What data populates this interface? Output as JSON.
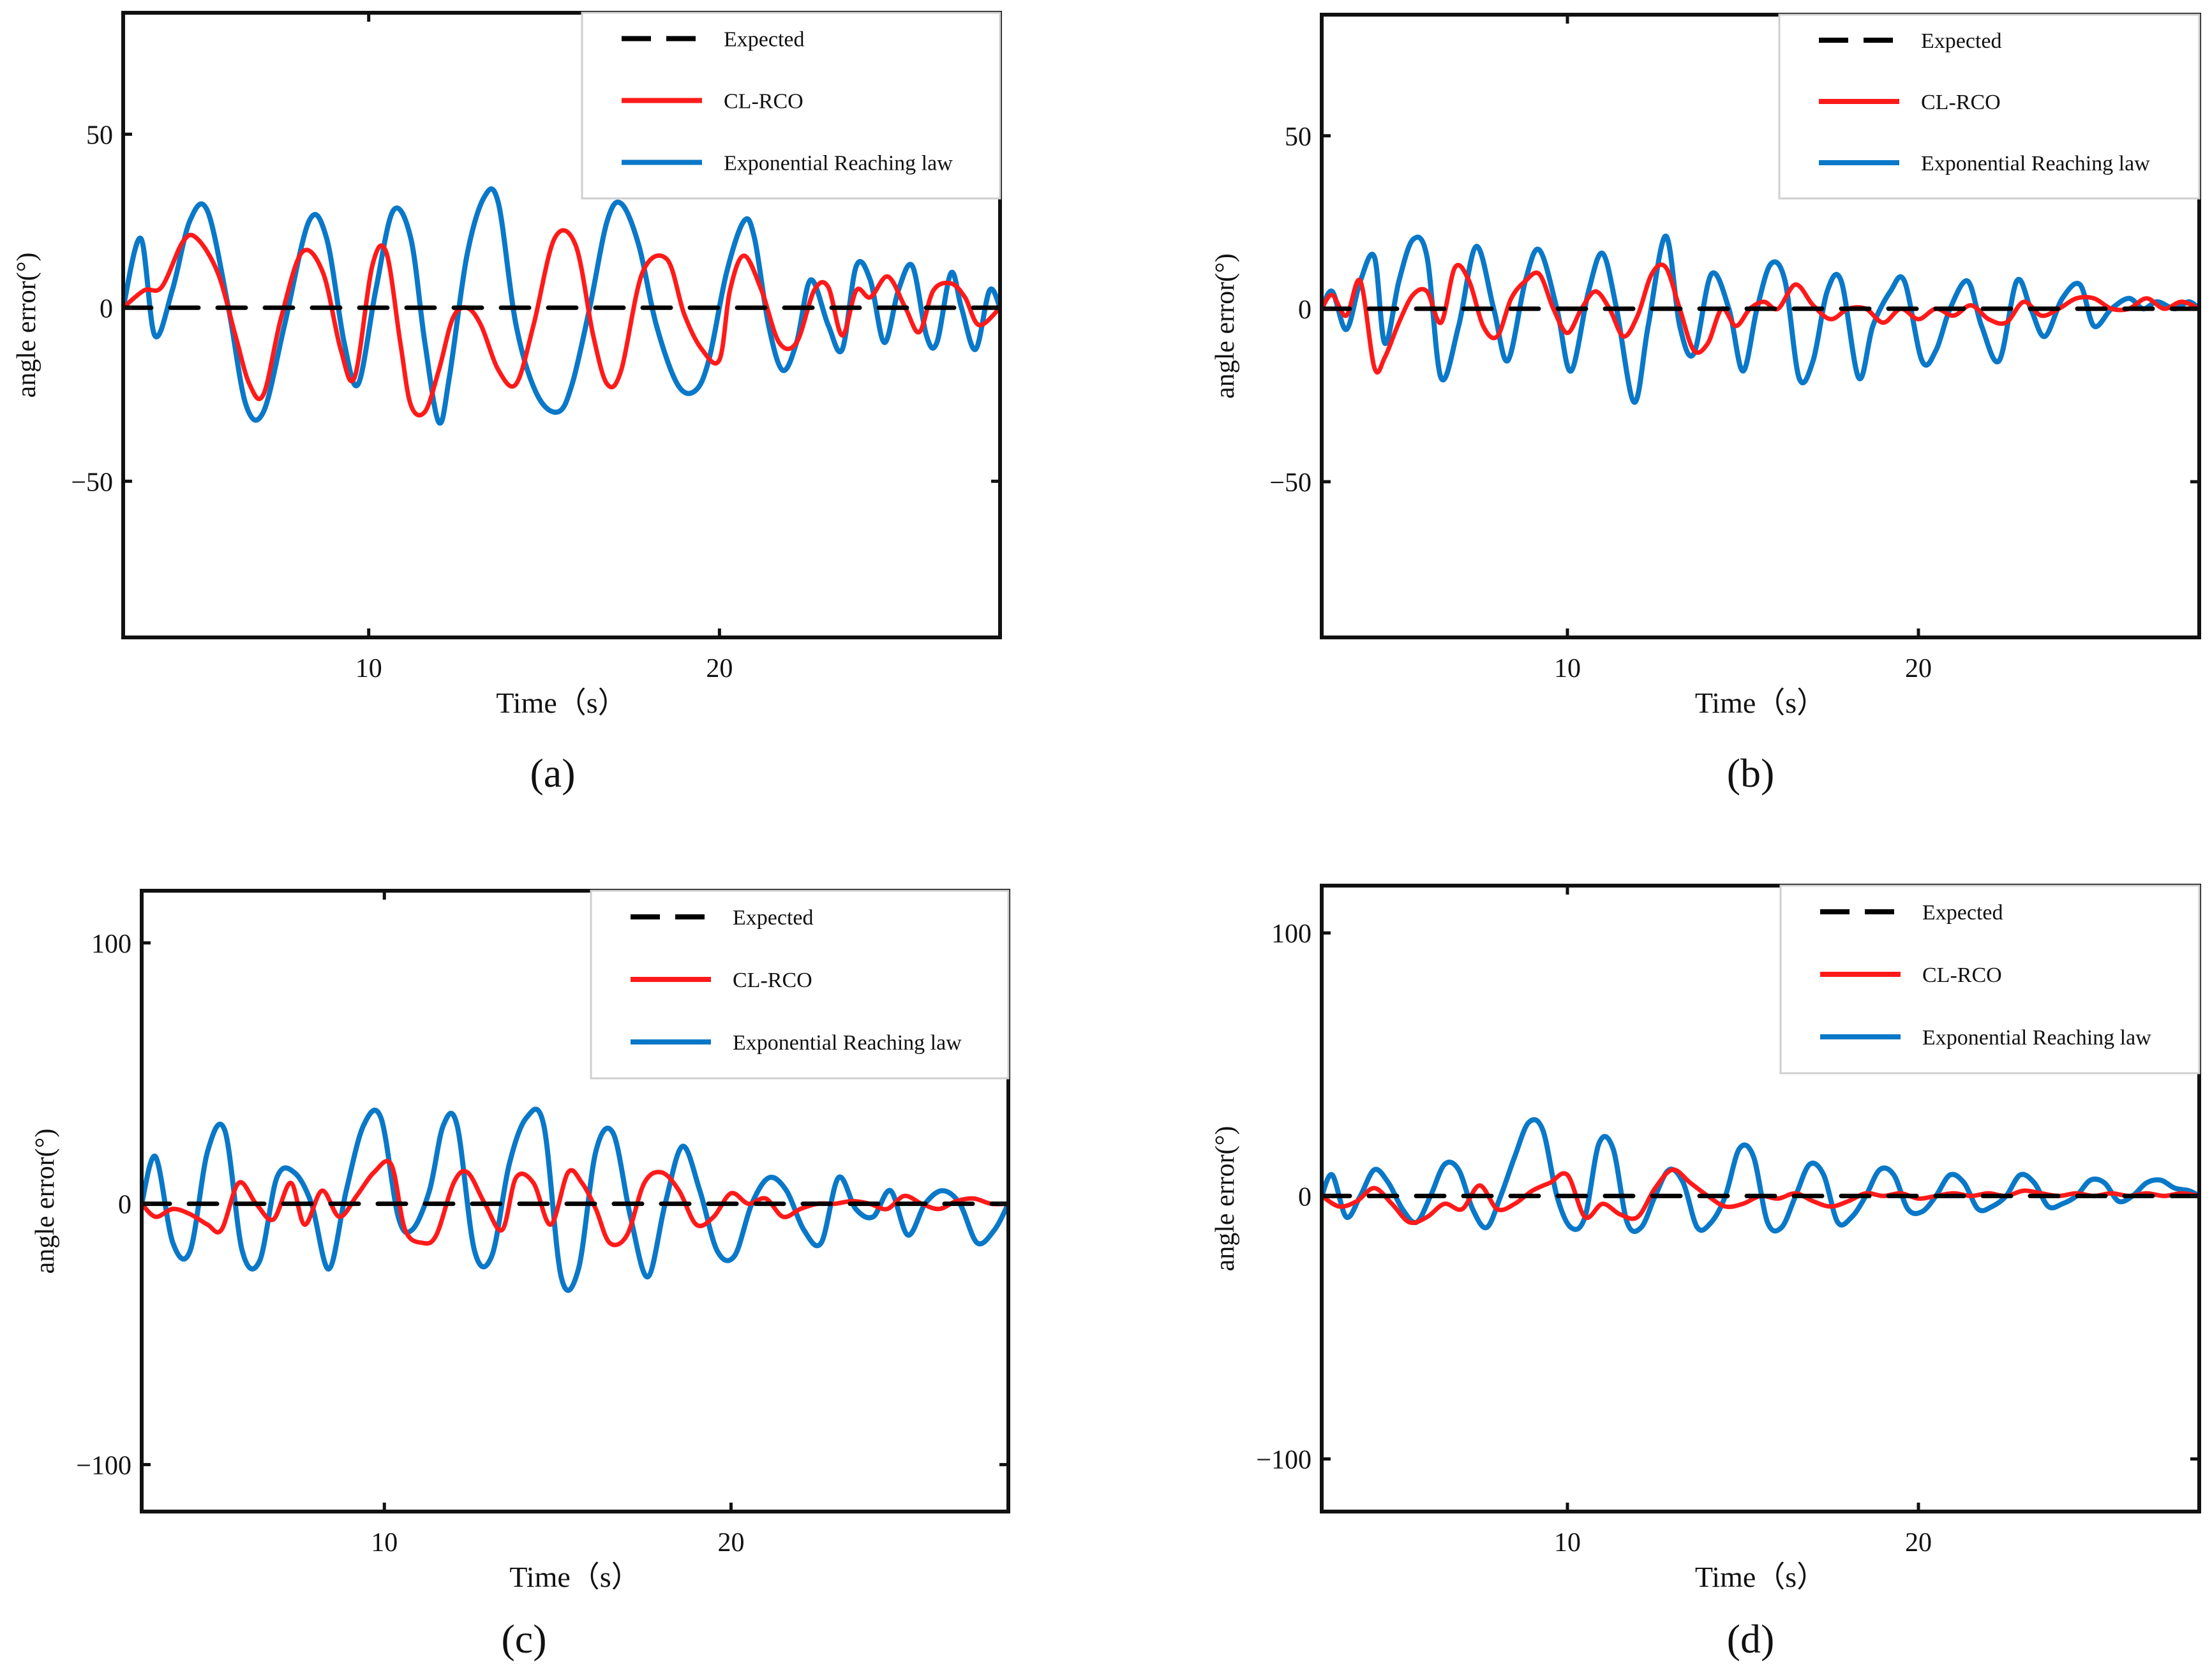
{
  "figure": {
    "panel_labels": [
      "(a)",
      "(b)",
      "(c)",
      "(d)"
    ],
    "colors": {
      "expected": "#000000",
      "clrco": "#ff1a1a",
      "exponential": "#0a78c8"
    }
  },
  "chart_data": [
    {
      "type": "line",
      "panel": "(a)",
      "xlabel": "Time（s）",
      "ylabel": "angle error(°)",
      "xlim": [
        3,
        28
      ],
      "ylim": [
        -95,
        85
      ],
      "xticks": [
        10,
        20
      ],
      "yticks": [
        50,
        0,
        -50
      ],
      "ytick_labels": [
        "50",
        "0",
        "−50"
      ],
      "legend": [
        "Expected",
        "CL-RCO",
        "Exponential Reaching law"
      ],
      "series": [
        {
          "name": "Expected",
          "style": "dashed",
          "color": "#000000",
          "x": [
            3,
            28
          ],
          "y": [
            0,
            0
          ]
        },
        {
          "name": "CL-RCO",
          "style": "solid",
          "color": "#ff1a1a",
          "x": [
            3.0,
            3.6,
            4.1,
            4.7,
            5.1,
            5.7,
            6.2,
            6.6,
            7.0,
            7.5,
            8.1,
            8.7,
            9.2,
            9.6,
            10.1,
            10.5,
            10.9,
            11.2,
            11.6,
            12.0,
            12.4,
            12.8,
            13.2,
            13.7,
            14.2,
            14.7,
            15.3,
            15.9,
            16.4,
            16.8,
            17.2,
            17.8,
            18.5,
            19.0,
            19.5,
            20.0,
            20.3,
            20.7,
            21.2,
            21.7,
            22.2,
            22.7,
            23.1,
            23.5,
            23.9,
            24.3,
            24.8,
            25.3,
            25.7,
            26.1,
            26.6,
            27.0,
            27.4,
            28.0
          ],
          "y": [
            0,
            5,
            6,
            19,
            20,
            10,
            -8,
            -22,
            -25,
            -3,
            16,
            10,
            -12,
            -20,
            12,
            16,
            -10,
            -28,
            -30,
            -18,
            -3,
            0,
            -5,
            -18,
            -22,
            -5,
            20,
            18,
            -8,
            -22,
            -18,
            10,
            14,
            -2,
            -12,
            -15,
            5,
            15,
            5,
            -10,
            -10,
            5,
            6,
            -8,
            5,
            3,
            9,
            0,
            -7,
            5,
            7,
            3,
            -5,
            0
          ]
        },
        {
          "name": "Exponential Reaching law",
          "style": "solid",
          "color": "#0a78c8",
          "x": [
            3.0,
            3.5,
            3.9,
            4.4,
            4.9,
            5.4,
            6.0,
            6.5,
            7.0,
            7.6,
            8.3,
            8.8,
            9.3,
            9.7,
            10.2,
            10.7,
            11.2,
            11.6,
            12.0,
            12.3,
            12.8,
            13.3,
            13.7,
            14.2,
            14.8,
            15.4,
            15.8,
            16.3,
            16.8,
            17.2,
            17.7,
            18.2,
            18.8,
            19.3,
            19.7,
            20.2,
            20.7,
            21.0,
            21.4,
            21.8,
            22.2,
            22.6,
            23.1,
            23.5,
            23.9,
            24.3,
            24.7,
            25.1,
            25.5,
            25.9,
            26.2,
            26.6,
            26.9,
            27.3,
            27.7,
            28.0
          ],
          "y": [
            0,
            20,
            -8,
            5,
            25,
            28,
            0,
            -28,
            -30,
            -5,
            25,
            20,
            -10,
            -22,
            5,
            28,
            20,
            -10,
            -33,
            -20,
            15,
            32,
            30,
            -5,
            -25,
            -30,
            -22,
            0,
            25,
            30,
            18,
            -5,
            -22,
            -24,
            -15,
            10,
            25,
            20,
            -5,
            -18,
            -10,
            8,
            -5,
            -12,
            12,
            8,
            -10,
            5,
            12,
            -8,
            -10,
            10,
            0,
            -12,
            5,
            0
          ]
        }
      ]
    },
    {
      "type": "line",
      "panel": "(b)",
      "xlabel": "Time（s）",
      "ylabel": "angle error(°)",
      "xlim": [
        3,
        28
      ],
      "ylim": [
        -95,
        85
      ],
      "xticks": [
        10,
        20
      ],
      "yticks": [
        50,
        0,
        -50
      ],
      "ytick_labels": [
        "50",
        "0",
        "−50"
      ],
      "legend": [
        "Expected",
        "CL-RCO",
        "Exponential Reaching law"
      ],
      "series": [
        {
          "name": "Expected",
          "style": "dashed",
          "color": "#000000",
          "x": [
            3,
            28
          ],
          "y": [
            0,
            0
          ]
        },
        {
          "name": "CL-RCO",
          "style": "solid",
          "color": "#ff1a1a",
          "x": [
            3.0,
            3.3,
            3.7,
            4.1,
            4.5,
            4.8,
            5.2,
            5.6,
            6.0,
            6.4,
            6.8,
            7.2,
            7.6,
            8.0,
            8.4,
            8.8,
            9.2,
            9.6,
            10.0,
            10.4,
            10.8,
            11.2,
            11.6,
            12.0,
            12.4,
            12.8,
            13.2,
            13.6,
            14.0,
            14.4,
            14.8,
            15.2,
            15.6,
            16.0,
            16.5,
            17.0,
            17.5,
            18.0,
            18.5,
            19.0,
            19.5,
            20.0,
            20.5,
            21.0,
            21.5,
            22.0,
            22.5,
            23.0,
            23.5,
            24.0,
            24.5,
            25.0,
            25.5,
            26.0,
            26.5,
            27.0,
            27.5,
            28.0
          ],
          "y": [
            0,
            4,
            -2,
            8,
            -17,
            -14,
            -4,
            4,
            5,
            -4,
            12,
            8,
            -5,
            -8,
            3,
            8,
            10,
            0,
            -7,
            0,
            5,
            0,
            -8,
            -2,
            10,
            12,
            0,
            -12,
            -10,
            0,
            -5,
            0,
            2,
            0,
            7,
            1,
            -3,
            0,
            0,
            -4,
            0,
            -3,
            0,
            -2,
            1,
            -3,
            -4,
            2,
            -2,
            0,
            3,
            3,
            0,
            0,
            3,
            0,
            2,
            0
          ]
        },
        {
          "name": "Exponential Reaching law",
          "style": "solid",
          "color": "#0a78c8",
          "x": [
            3.0,
            3.3,
            3.7,
            4.1,
            4.5,
            4.8,
            5.2,
            5.6,
            6.0,
            6.4,
            6.9,
            7.4,
            7.9,
            8.3,
            8.8,
            9.2,
            9.7,
            10.1,
            10.6,
            11.0,
            11.4,
            11.9,
            12.3,
            12.8,
            13.2,
            13.6,
            14.1,
            14.6,
            15.0,
            15.4,
            15.8,
            16.2,
            16.6,
            17.0,
            17.4,
            17.8,
            18.3,
            18.7,
            19.2,
            19.6,
            20.1,
            20.5,
            20.9,
            21.4,
            21.8,
            22.3,
            22.8,
            23.2,
            23.6,
            24.1,
            24.6,
            25.0,
            25.5,
            26.0,
            26.4,
            26.8,
            27.3,
            27.7,
            28.0
          ],
          "y": [
            0,
            5,
            -6,
            8,
            15,
            -10,
            8,
            20,
            15,
            -20,
            -5,
            18,
            0,
            -15,
            8,
            17,
            0,
            -18,
            5,
            16,
            0,
            -27,
            -5,
            21,
            -5,
            -13,
            10,
            0,
            -18,
            0,
            13,
            8,
            -20,
            -15,
            5,
            8,
            -20,
            -5,
            5,
            8,
            -15,
            -12,
            0,
            8,
            -5,
            -15,
            8,
            0,
            -8,
            3,
            7,
            -5,
            0,
            3,
            0,
            2,
            0,
            2,
            0
          ]
        }
      ]
    },
    {
      "type": "line",
      "panel": "(c)",
      "xlabel": "Time（s）",
      "ylabel": "angle error(°)",
      "xlim": [
        3,
        28
      ],
      "ylim": [
        -118,
        120
      ],
      "xticks": [
        10,
        20
      ],
      "yticks": [
        100,
        0,
        -100
      ],
      "ytick_labels": [
        "100",
        "0",
        "−100"
      ],
      "legend": [
        "Expected",
        "CL-RCO",
        "Exponential Reaching law"
      ],
      "series": [
        {
          "name": "Expected",
          "style": "dashed",
          "color": "#000000",
          "x": [
            3,
            28
          ],
          "y": [
            0,
            0
          ]
        },
        {
          "name": "CL-RCO",
          "style": "solid",
          "color": "#ff1a1a",
          "x": [
            3.0,
            3.4,
            3.9,
            4.4,
            4.9,
            5.3,
            5.8,
            6.3,
            6.8,
            7.3,
            7.7,
            8.2,
            8.7,
            9.2,
            9.7,
            10.2,
            10.6,
            11.1,
            11.5,
            12.0,
            12.4,
            12.9,
            13.4,
            13.8,
            14.3,
            14.8,
            15.3,
            15.7,
            16.1,
            16.5,
            17.0,
            17.5,
            18.0,
            18.5,
            19.0,
            19.5,
            20.0,
            20.5,
            21.0,
            21.5,
            22.0,
            22.5,
            23.0,
            23.5,
            24.0,
            24.5,
            25.0,
            25.5,
            26.0,
            26.5,
            27.0,
            27.5,
            28.0
          ],
          "y": [
            0,
            -5,
            -2,
            -4,
            -8,
            -10,
            8,
            0,
            -6,
            8,
            -8,
            5,
            -5,
            3,
            12,
            15,
            -10,
            -15,
            -12,
            8,
            12,
            0,
            -10,
            10,
            8,
            -8,
            12,
            8,
            -2,
            -15,
            -12,
            8,
            12,
            5,
            -8,
            -5,
            4,
            0,
            2,
            -5,
            -2,
            0,
            0,
            1,
            0,
            -2,
            3,
            0,
            -2,
            1,
            2,
            0,
            0
          ]
        },
        {
          "name": "Exponential Reaching law",
          "style": "solid",
          "color": "#0a78c8",
          "x": [
            3.0,
            3.4,
            3.9,
            4.4,
            4.9,
            5.4,
            5.9,
            6.4,
            6.9,
            7.4,
            7.9,
            8.4,
            8.9,
            9.4,
            9.9,
            10.4,
            10.8,
            11.3,
            11.7,
            12.1,
            12.6,
            13.1,
            13.6,
            14.1,
            14.6,
            15.1,
            15.6,
            16.1,
            16.6,
            17.1,
            17.6,
            18.1,
            18.6,
            19.1,
            19.6,
            20.1,
            20.6,
            21.1,
            21.6,
            22.1,
            22.6,
            23.1,
            23.6,
            24.1,
            24.6,
            25.1,
            25.6,
            26.1,
            26.6,
            27.1,
            27.6,
            28.0
          ],
          "y": [
            0,
            18,
            -15,
            -18,
            20,
            28,
            -18,
            -22,
            10,
            12,
            0,
            -25,
            5,
            30,
            33,
            -5,
            -10,
            5,
            30,
            30,
            -18,
            -20,
            15,
            33,
            30,
            -28,
            -25,
            20,
            27,
            -5,
            -28,
            0,
            22,
            5,
            -18,
            -20,
            0,
            10,
            5,
            -10,
            -15,
            10,
            -2,
            -5,
            5,
            -12,
            0,
            5,
            0,
            -15,
            -10,
            0
          ]
        }
      ]
    },
    {
      "type": "line",
      "panel": "(d)",
      "xlabel": "Time（s）",
      "ylabel": "angle error(°)",
      "xlim": [
        3,
        28
      ],
      "ylim": [
        -120,
        118
      ],
      "xticks": [
        10,
        20
      ],
      "yticks": [
        100,
        0,
        -100
      ],
      "ytick_labels": [
        "100",
        "0",
        "−100"
      ],
      "legend": [
        "Expected",
        "CL-RCO",
        "Exponential Reaching law"
      ],
      "series": [
        {
          "name": "Expected",
          "style": "dashed",
          "color": "#000000",
          "x": [
            3,
            28
          ],
          "y": [
            0,
            0
          ]
        },
        {
          "name": "CL-RCO",
          "style": "solid",
          "color": "#ff1a1a",
          "x": [
            3.0,
            3.5,
            4.0,
            4.5,
            5.0,
            5.5,
            6.0,
            6.5,
            7.0,
            7.5,
            8.0,
            8.5,
            9.0,
            9.5,
            10.0,
            10.5,
            11.0,
            11.5,
            12.0,
            12.5,
            13.0,
            13.5,
            14.0,
            14.5,
            15.0,
            15.5,
            16.0,
            16.5,
            17.0,
            17.5,
            18.0,
            18.5,
            19.0,
            19.5,
            20.0,
            20.5,
            21.0,
            21.5,
            22.0,
            22.5,
            23.0,
            23.5,
            24.0,
            24.5,
            25.0,
            25.5,
            26.0,
            26.5,
            27.0,
            27.5,
            28.0
          ],
          "y": [
            0,
            -4,
            -2,
            3,
            -3,
            -10,
            -8,
            -3,
            -5,
            4,
            -5,
            -3,
            2,
            5,
            8,
            -8,
            -3,
            -7,
            -8,
            3,
            10,
            5,
            0,
            -4,
            -3,
            0,
            -1,
            1,
            -2,
            -4,
            -2,
            1,
            0,
            1,
            -1,
            0,
            1,
            0,
            1,
            0,
            2,
            1,
            0,
            1,
            0,
            1,
            0,
            1,
            0,
            1,
            0
          ]
        },
        {
          "name": "Exponential Reaching law",
          "style": "solid",
          "color": "#0a78c8",
          "x": [
            3.0,
            3.3,
            3.7,
            4.1,
            4.5,
            4.9,
            5.3,
            5.7,
            6.1,
            6.5,
            6.9,
            7.3,
            7.7,
            8.1,
            8.5,
            8.9,
            9.3,
            9.7,
            10.1,
            10.5,
            10.9,
            11.3,
            11.7,
            12.1,
            12.5,
            12.9,
            13.3,
            13.7,
            14.1,
            14.5,
            14.9,
            15.3,
            15.7,
            16.1,
            16.5,
            16.9,
            17.3,
            17.7,
            18.1,
            18.5,
            18.9,
            19.3,
            19.7,
            20.1,
            20.5,
            20.9,
            21.3,
            21.7,
            22.1,
            22.5,
            22.9,
            23.3,
            23.7,
            24.1,
            24.5,
            24.9,
            25.3,
            25.7,
            26.1,
            26.5,
            26.9,
            27.3,
            27.7,
            28.0
          ],
          "y": [
            0,
            8,
            -8,
            0,
            10,
            5,
            -5,
            -10,
            0,
            12,
            10,
            -5,
            -12,
            0,
            15,
            28,
            25,
            0,
            -12,
            -8,
            20,
            18,
            -10,
            -12,
            0,
            10,
            5,
            -12,
            -10,
            0,
            18,
            15,
            -10,
            -12,
            0,
            12,
            8,
            -10,
            -8,
            0,
            10,
            8,
            -5,
            -6,
            0,
            8,
            5,
            -5,
            -4,
            0,
            8,
            5,
            -4,
            -3,
            0,
            6,
            5,
            -2,
            0,
            5,
            6,
            3,
            2,
            0
          ]
        }
      ]
    }
  ]
}
